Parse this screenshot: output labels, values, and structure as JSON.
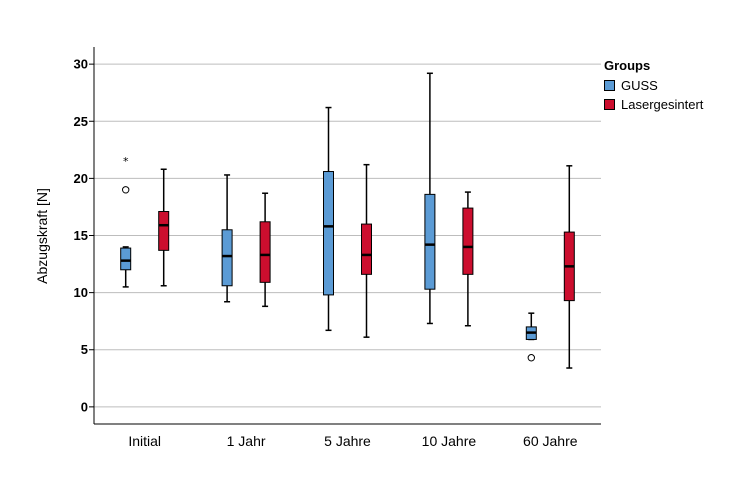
{
  "chart_data": {
    "type": "boxplot",
    "ylabel": "Abzugskraft [N]",
    "ylim": [
      -1.5,
      31.5
    ],
    "yticks": [
      0,
      5,
      10,
      15,
      20,
      25,
      30
    ],
    "categories": [
      "Initial",
      "1 Jahr",
      "5 Jahre",
      "10 Jahre",
      "60 Jahre"
    ],
    "legend": {
      "title": "Groups",
      "position": "top-right"
    },
    "grid": "horizontal",
    "series": [
      {
        "name": "GUSS",
        "color": "#5b9bd5",
        "boxes": [
          {
            "min": 10.5,
            "q1": 12.0,
            "median": 12.8,
            "q3": 13.9,
            "max": 14.0,
            "outliers": [
              19.0
            ],
            "extremes": [
              21.6
            ]
          },
          {
            "min": 9.2,
            "q1": 10.6,
            "median": 13.2,
            "q3": 15.5,
            "max": 20.3,
            "outliers": [],
            "extremes": []
          },
          {
            "min": 6.7,
            "q1": 9.8,
            "median": 15.8,
            "q3": 20.6,
            "max": 26.2,
            "outliers": [],
            "extremes": []
          },
          {
            "min": 7.3,
            "q1": 10.3,
            "median": 14.2,
            "q3": 18.6,
            "max": 29.2,
            "outliers": [],
            "extremes": []
          },
          {
            "min": 5.9,
            "q1": 5.9,
            "median": 6.5,
            "q3": 7.0,
            "max": 8.2,
            "outliers": [
              4.3
            ],
            "extremes": []
          }
        ]
      },
      {
        "name": "Lasergesintert",
        "color": "#cc0e2e",
        "boxes": [
          {
            "min": 10.6,
            "q1": 13.7,
            "median": 15.9,
            "q3": 17.1,
            "max": 20.8,
            "outliers": [],
            "extremes": []
          },
          {
            "min": 8.8,
            "q1": 10.9,
            "median": 13.3,
            "q3": 16.2,
            "max": 18.7,
            "outliers": [],
            "extremes": []
          },
          {
            "min": 6.1,
            "q1": 11.6,
            "median": 13.3,
            "q3": 16.0,
            "max": 21.2,
            "outliers": [],
            "extremes": []
          },
          {
            "min": 7.1,
            "q1": 11.6,
            "median": 14.0,
            "q3": 17.4,
            "max": 18.8,
            "outliers": [],
            "extremes": []
          },
          {
            "min": 3.4,
            "q1": 9.3,
            "median": 12.3,
            "q3": 15.3,
            "max": 21.1,
            "outliers": [],
            "extremes": []
          }
        ]
      }
    ]
  }
}
